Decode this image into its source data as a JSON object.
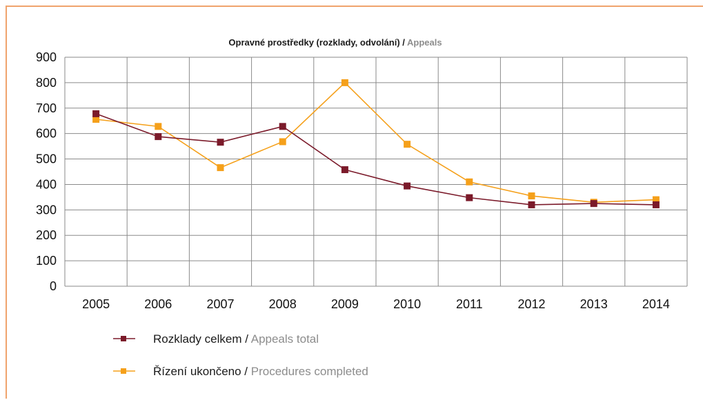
{
  "chart_data": {
    "type": "line",
    "title": {
      "main": "Opravné prostředky (rozklady, odvolání) / ",
      "sub": "Appeals"
    },
    "categories": [
      "2005",
      "2006",
      "2007",
      "2008",
      "2009",
      "2010",
      "2011",
      "2012",
      "2013",
      "2014"
    ],
    "ylim": [
      0,
      900
    ],
    "yticks": [
      0,
      100,
      200,
      300,
      400,
      500,
      600,
      700,
      800,
      900
    ],
    "grid": true,
    "legend_position": "bottom-left",
    "series": [
      {
        "name_main": "Rozklady celkem / ",
        "name_sub": "Appeals total",
        "color": "#7b1a2a",
        "values": [
          678,
          588,
          566,
          628,
          458,
          394,
          348,
          320,
          325,
          320
        ]
      },
      {
        "name_main": "Řízení ukončeno / ",
        "name_sub": "Procedures completed",
        "color": "#f5a01a",
        "values": [
          656,
          628,
          466,
          568,
          800,
          558,
          410,
          355,
          330,
          340
        ]
      }
    ]
  }
}
